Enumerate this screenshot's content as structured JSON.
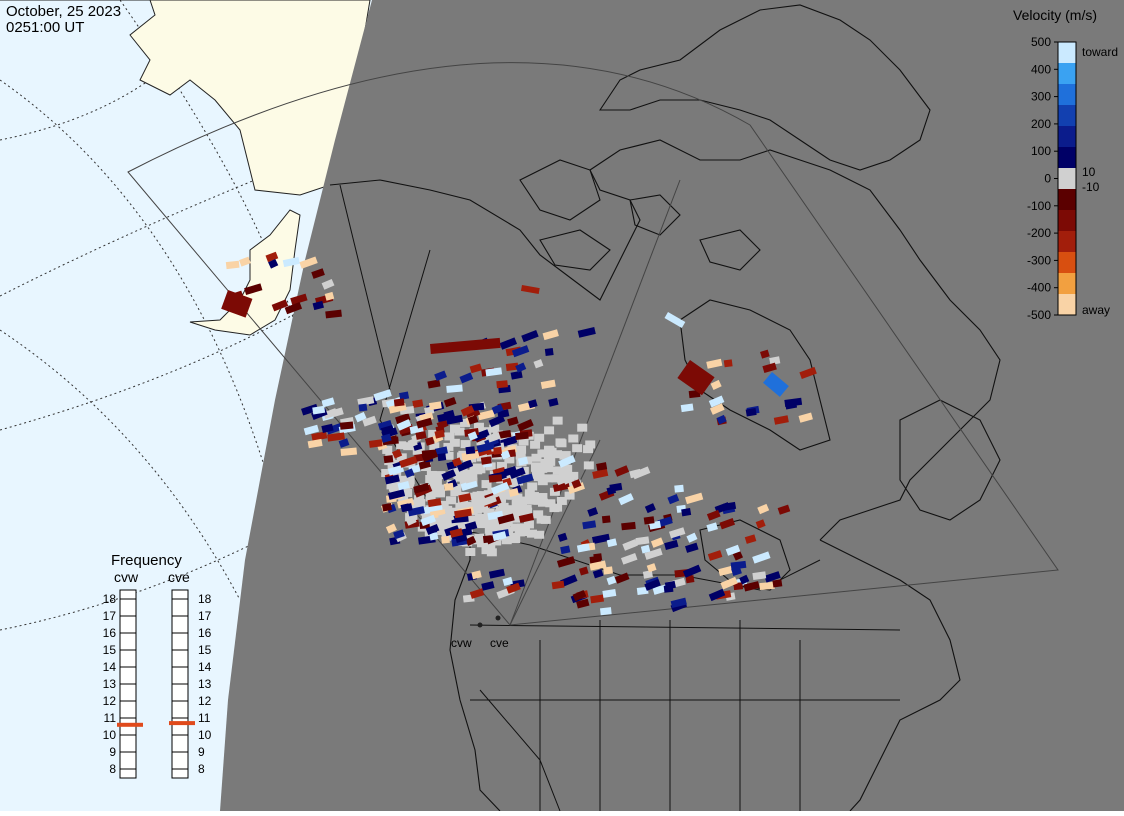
{
  "header": {
    "date": "October, 25 2023",
    "time": "0251:00 UT"
  },
  "velocity_scale": {
    "title": "Velocity (m/s)",
    "ticks": [
      {
        "label": "500",
        "value": 500
      },
      {
        "label": "400",
        "value": 400
      },
      {
        "label": "300",
        "value": 300
      },
      {
        "label": "200",
        "value": 200
      },
      {
        "label": "100",
        "value": 100
      },
      {
        "label": "0",
        "value": 0
      },
      {
        "label": "-100",
        "value": -100
      },
      {
        "label": "-200",
        "value": -200
      },
      {
        "label": "-300",
        "value": -300
      },
      {
        "label": "-400",
        "value": -400
      },
      {
        "label": "-500",
        "value": -500
      }
    ],
    "threshold_pos": "10",
    "threshold_neg": "-10",
    "toward_label": "toward",
    "away_label": "away",
    "colors": [
      "#f9d3a6",
      "#f2a040",
      "#d84f10",
      "#a21e0b",
      "#7c0a05",
      "#5b0000",
      "#d0d0d0",
      "#000066",
      "#0b1c8c",
      "#1240b0",
      "#1f70db",
      "#3aa2f2",
      "#cbeaff"
    ]
  },
  "frequency": {
    "title": "Frequency",
    "radars": [
      "cvw",
      "cve"
    ],
    "ticks": [
      "18",
      "17",
      "16",
      "15",
      "14",
      "13",
      "12",
      "11",
      "10",
      "9",
      "8"
    ],
    "cvw_mhz": 10.6,
    "cve_mhz": 10.7,
    "marker_color": "#e04a1c"
  },
  "map": {
    "site_labels": [
      "cvw",
      "cve"
    ],
    "night_color": "#7a7a7a",
    "ocean_color": "#e8f6ff",
    "land_day_color": "#fdfbe6",
    "ground_scatter_color": "#d0d0d0"
  }
}
